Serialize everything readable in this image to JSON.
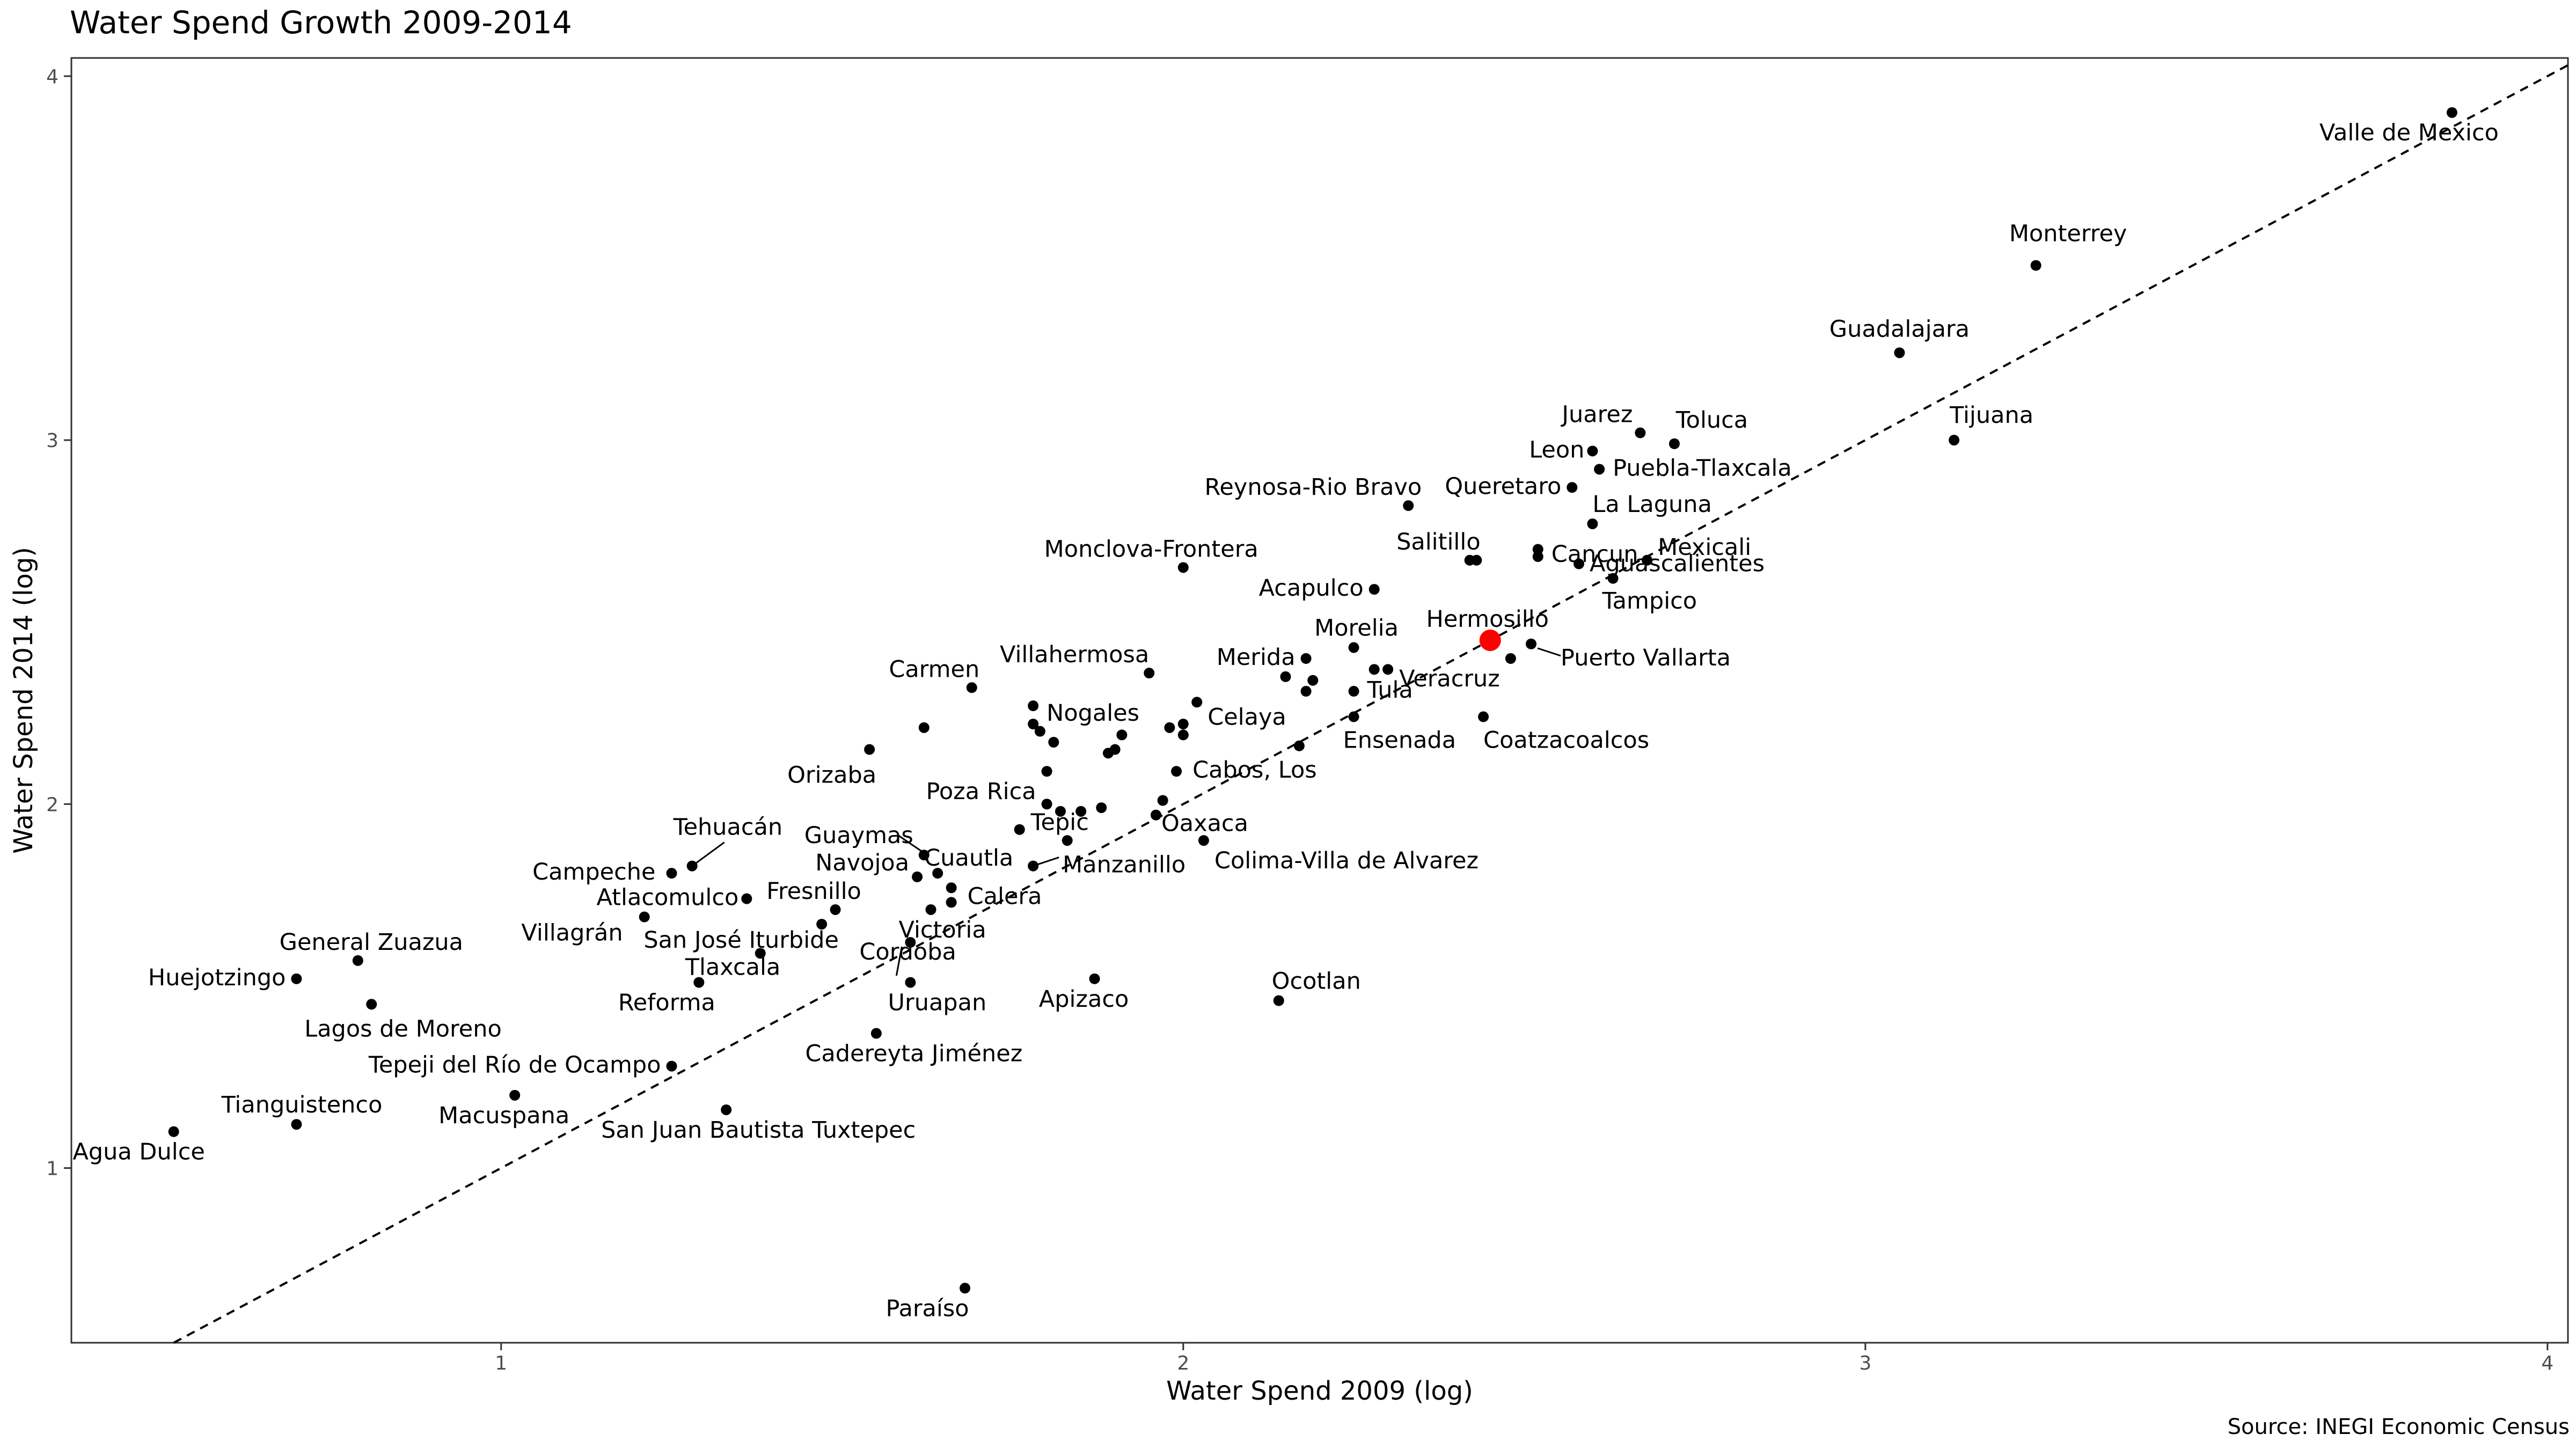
{
  "chart_data": {
    "type": "scatter",
    "title": "Water Spend Growth 2009-2014",
    "caption": "Source: INEGI Economic Census",
    "xlabel": "Water Spend 2009 (log)",
    "ylabel": "Water Spend 2014 (log)",
    "xlim": [
      0.37,
      4.03
    ],
    "ylim": [
      0.52,
      4.05
    ],
    "xticks": [
      "1",
      "2",
      "3",
      "4"
    ],
    "yticks": [
      "1",
      "2",
      "3",
      "4"
    ],
    "grid": false,
    "reference_line": "y = x (dashed)",
    "highlight_color": "#ff0000",
    "point_color": "#000000",
    "highlighted": "Hermosillo",
    "labeled_points": [
      {
        "name": "Valle de Mexico",
        "x": 3.86,
        "y": 3.9
      },
      {
        "name": "Monterrey",
        "x": 3.25,
        "y": 3.48
      },
      {
        "name": "Guadalajara",
        "x": 3.05,
        "y": 3.24
      },
      {
        "name": "Tijuana",
        "x": 3.13,
        "y": 3.0
      },
      {
        "name": "Juarez",
        "x": 2.67,
        "y": 3.02
      },
      {
        "name": "Toluca",
        "x": 2.72,
        "y": 2.99
      },
      {
        "name": "Leon",
        "x": 2.6,
        "y": 2.97
      },
      {
        "name": "Puebla-Tlaxcala",
        "x": 2.61,
        "y": 2.92
      },
      {
        "name": "Queretaro",
        "x": 2.57,
        "y": 2.87
      },
      {
        "name": "Reynosa-Rio Bravo",
        "x": 2.33,
        "y": 2.82
      },
      {
        "name": "La Laguna",
        "x": 2.6,
        "y": 2.77
      },
      {
        "name": "Salitillo",
        "x": 2.42,
        "y": 2.67
      },
      {
        "name": "Cancun",
        "x": 2.52,
        "y": 2.68
      },
      {
        "name": "Mexicali",
        "x": 2.68,
        "y": 2.67
      },
      {
        "name": "Monclova-Frontera",
        "x": 2.0,
        "y": 2.65
      },
      {
        "name": "Acapulco",
        "x": 2.28,
        "y": 2.59
      },
      {
        "name": "Aguascalientes",
        "x": 2.58,
        "y": 2.66
      },
      {
        "name": "Tampico",
        "x": 2.63,
        "y": 2.62
      },
      {
        "name": "Hermosillo",
        "x": 2.45,
        "y": 2.45
      },
      {
        "name": "Puerto Vallarta",
        "x": 2.51,
        "y": 2.44
      },
      {
        "name": "Morelia",
        "x": 2.25,
        "y": 2.43
      },
      {
        "name": "Merida",
        "x": 2.18,
        "y": 2.4
      },
      {
        "name": "Veracruz",
        "x": 2.48,
        "y": 2.4
      },
      {
        "name": "Villahermosa",
        "x": 1.95,
        "y": 2.36
      },
      {
        "name": "Tula",
        "x": 2.25,
        "y": 2.31
      },
      {
        "name": "Carmen",
        "x": 1.69,
        "y": 2.32
      },
      {
        "name": "Nogales",
        "x": 1.78,
        "y": 2.27
      },
      {
        "name": "Celaya",
        "x": 2.02,
        "y": 2.28
      },
      {
        "name": "Ensenada",
        "x": 2.25,
        "y": 2.24
      },
      {
        "name": "Coatzacoalcos",
        "x": 2.44,
        "y": 2.24
      },
      {
        "name": "Orizaba",
        "x": 1.54,
        "y": 2.15
      },
      {
        "name": "Cabos, Los",
        "x": 1.99,
        "y": 2.09
      },
      {
        "name": "Poza Rica",
        "x": 1.8,
        "y": 2.09
      },
      {
        "name": "Tepic",
        "x": 1.8,
        "y": 2.0
      },
      {
        "name": "Oaxaca",
        "x": 1.96,
        "y": 1.97
      },
      {
        "name": "Guaymas",
        "x": 1.62,
        "y": 1.86
      },
      {
        "name": "Tehuacán",
        "x": 1.28,
        "y": 1.83
      },
      {
        "name": "Campeche",
        "x": 1.25,
        "y": 1.81
      },
      {
        "name": "Navojoa",
        "x": 1.61,
        "y": 1.8
      },
      {
        "name": "Cuautla",
        "x": 1.64,
        "y": 1.81
      },
      {
        "name": "Manzanillo",
        "x": 1.78,
        "y": 1.83
      },
      {
        "name": "Colima-Villa de Alvarez",
        "x": 2.03,
        "y": 1.9
      },
      {
        "name": "Calera",
        "x": 1.66,
        "y": 1.77
      },
      {
        "name": "Atlacomulco",
        "x": 1.36,
        "y": 1.74
      },
      {
        "name": "Fresnillo",
        "x": 1.49,
        "y": 1.71
      },
      {
        "name": "Victoria",
        "x": 1.63,
        "y": 1.71
      },
      {
        "name": "Villagrán",
        "x": 1.21,
        "y": 1.69
      },
      {
        "name": "San José Iturbide",
        "x": 1.47,
        "y": 1.67
      },
      {
        "name": "General Zuazua",
        "x": 0.79,
        "y": 1.57
      },
      {
        "name": "Tlaxcala",
        "x": 1.38,
        "y": 1.59
      },
      {
        "name": "Cordoba",
        "x": 1.6,
        "y": 1.62
      },
      {
        "name": "Huejotzingo",
        "x": 0.7,
        "y": 1.52
      },
      {
        "name": "Lagos de Moreno",
        "x": 0.81,
        "y": 1.45
      },
      {
        "name": "Reforma",
        "x": 1.29,
        "y": 1.51
      },
      {
        "name": "Uruapan",
        "x": 1.6,
        "y": 1.51
      },
      {
        "name": "Apizaco",
        "x": 1.87,
        "y": 1.52
      },
      {
        "name": "Ocotlan",
        "x": 2.14,
        "y": 1.46
      },
      {
        "name": "Cadereyta Jiménez",
        "x": 1.55,
        "y": 1.37
      },
      {
        "name": "Tepeji del Río de Ocampo",
        "x": 1.25,
        "y": 1.28
      },
      {
        "name": "Macuspana",
        "x": 1.02,
        "y": 1.2
      },
      {
        "name": "Tianguistenco",
        "x": 0.7,
        "y": 1.12
      },
      {
        "name": "San Juan Bautista Tuxtepec",
        "x": 1.33,
        "y": 1.16
      },
      {
        "name": "Agua Dulce",
        "x": 0.52,
        "y": 1.1
      },
      {
        "name": "Paraíso",
        "x": 1.68,
        "y": 0.67
      }
    ],
    "unlabeled_points": [
      [
        2.43,
        2.67
      ],
      [
        2.52,
        2.7
      ],
      [
        2.28,
        2.37
      ],
      [
        2.3,
        2.37
      ],
      [
        2.15,
        2.35
      ],
      [
        2.19,
        2.34
      ],
      [
        2.18,
        2.31
      ],
      [
        2.17,
        2.16
      ],
      [
        2.0,
        2.22
      ],
      [
        1.98,
        2.21
      ],
      [
        2.0,
        2.19
      ],
      [
        1.91,
        2.19
      ],
      [
        1.89,
        2.14
      ],
      [
        1.9,
        2.15
      ],
      [
        1.62,
        2.21
      ],
      [
        1.78,
        2.22
      ],
      [
        1.79,
        2.2
      ],
      [
        1.81,
        2.17
      ],
      [
        1.85,
        1.98
      ],
      [
        1.82,
        1.98
      ],
      [
        1.88,
        1.99
      ],
      [
        1.83,
        1.9
      ],
      [
        1.97,
        2.01
      ],
      [
        1.76,
        1.93
      ],
      [
        1.66,
        1.73
      ]
    ]
  }
}
